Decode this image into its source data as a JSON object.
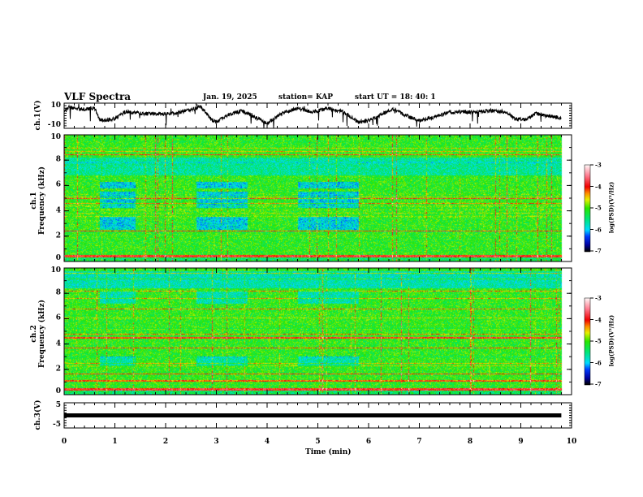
{
  "header": {
    "title": "VLF Spectra",
    "date": "Jan. 19, 2025",
    "station": "station= KAP",
    "start": "start  UT =   18: 40: 1"
  },
  "chart_data": [
    {
      "type": "line",
      "name": "ch1",
      "ylabel": "ch.1(V)",
      "ylim": [
        -10,
        10
      ],
      "yticks": [
        "10",
        "-10"
      ],
      "x": [
        0,
        0.1,
        0.3,
        0.6,
        0.7,
        0.8,
        1.0,
        1.2,
        1.5,
        1.9,
        2.2,
        2.5,
        2.7,
        2.9,
        3.0,
        3.2,
        3.5,
        3.8,
        4.0,
        4.3,
        4.6,
        4.9,
        5.2,
        5.5,
        5.8,
        6.0,
        6.3,
        6.5,
        6.8,
        7.0,
        7.3,
        7.6,
        7.9,
        8.1,
        8.4,
        8.7,
        8.9,
        9.1,
        9.3,
        9.5,
        9.7,
        9.8
      ],
      "y": [
        3,
        7,
        5,
        6,
        -3,
        -4,
        -2,
        3,
        2,
        1,
        2,
        5,
        7,
        -3,
        -5,
        0,
        4,
        -2,
        -6,
        2,
        6,
        3,
        6,
        3,
        -5,
        -4,
        2,
        5,
        -1,
        -4,
        -1,
        3,
        3,
        3,
        4,
        3,
        -3,
        -3,
        2,
        0,
        -1,
        -2
      ]
    },
    {
      "type": "heatmap",
      "name": "ch1-spectrogram",
      "ylabel": "ch.1\nFrequency (kHz)",
      "ylim": [
        0,
        10
      ],
      "yticks": [
        "0",
        "2",
        "4",
        "6",
        "8",
        "10"
      ],
      "colorbar": {
        "label": "log(PSD)(V²/Hz)",
        "range": [
          -7,
          -3
        ],
        "ticks": [
          "-3",
          "-4",
          "-5",
          "-6",
          "-7"
        ]
      }
    },
    {
      "type": "heatmap",
      "name": "ch2-spectrogram",
      "ylabel": "ch.2\nFrequency (kHz)",
      "ylim": [
        0,
        10
      ],
      "yticks": [
        "0",
        "2",
        "4",
        "6",
        "8",
        "10"
      ],
      "colorbar": {
        "label": "log(PSD)(V²/Hz)",
        "range": [
          -7,
          -3
        ],
        "ticks": [
          "-3",
          "-4",
          "-5",
          "-6",
          "-7"
        ]
      }
    },
    {
      "type": "line",
      "name": "ch3",
      "ylabel": "ch.3(V)",
      "ylim": [
        -5,
        5
      ],
      "yticks": [
        "5",
        "-5"
      ],
      "x": [
        0,
        9.8
      ],
      "y": [
        0,
        0
      ]
    }
  ],
  "xaxis": {
    "label": "Time (min)",
    "xlim": [
      0,
      10
    ],
    "ticks": [
      "0",
      "1",
      "2",
      "3",
      "4",
      "5",
      "6",
      "7",
      "8",
      "9",
      "10"
    ],
    "data_end": 9.8
  }
}
